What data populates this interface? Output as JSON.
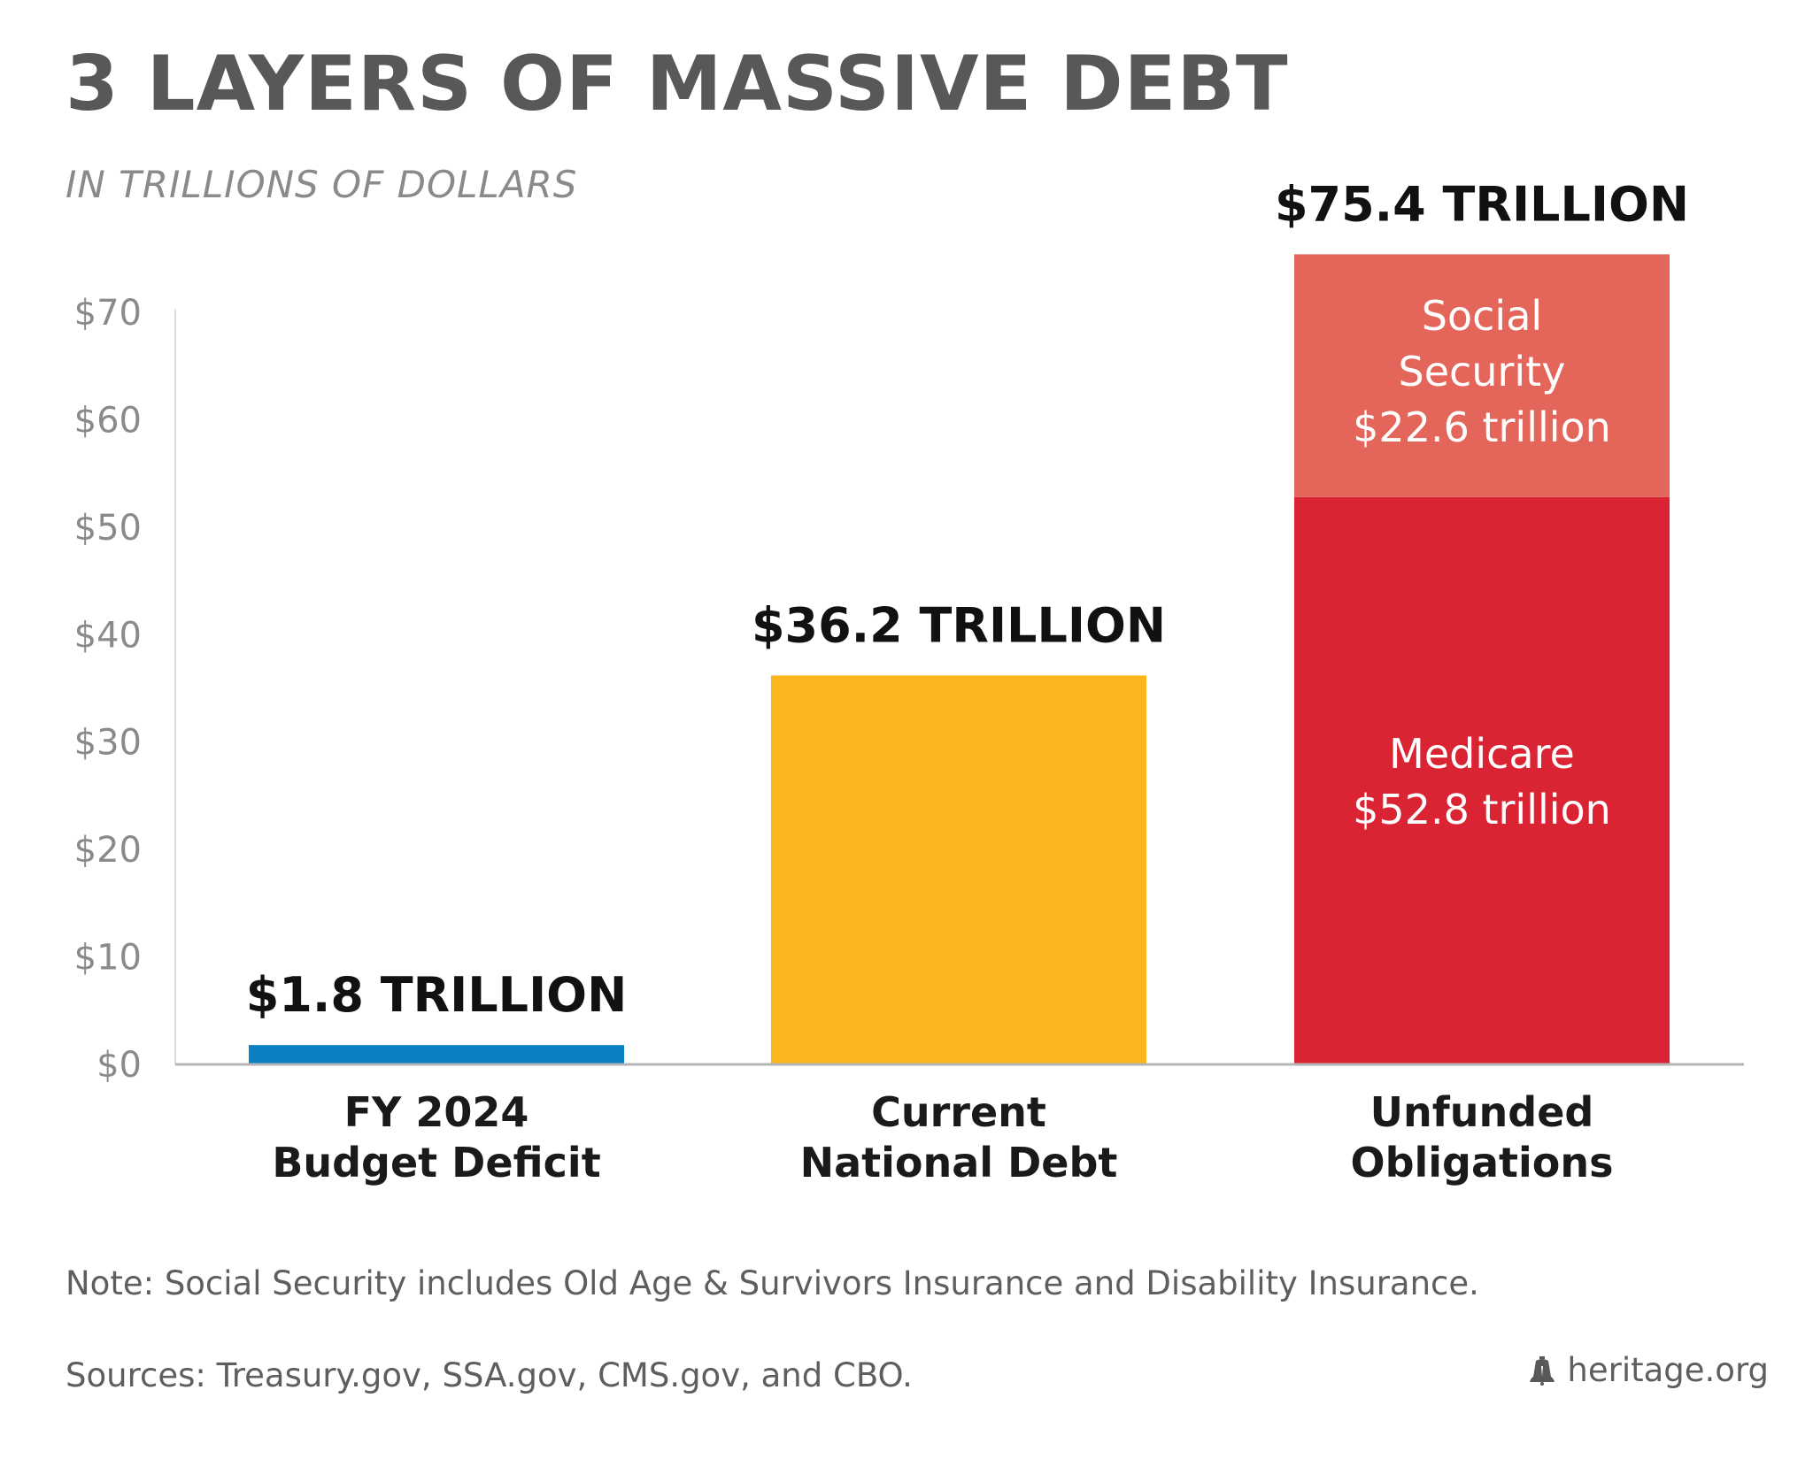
{
  "header": {
    "title": "3 LAYERS OF MASSIVE DEBT",
    "subtitle": "IN TRILLIONS OF DOLLARS"
  },
  "footer": {
    "note": "Note: Social Security includes Old Age & Survivors Insurance and Disability Insurance.",
    "sources": "Sources: Treasury.gov, SSA.gov, CMS.gov, and CBO.",
    "brand_text": "heritage.org",
    "brand_icon": "liberty-bell-icon"
  },
  "colors": {
    "title": "#58585a",
    "subtitle": "#8a8a8c",
    "tick_text": "#8a8a8c",
    "axis": "#b4b4b4",
    "value_label": "#111111",
    "category_label": "#1a1a1a",
    "deficit": "#0a7fc2",
    "national_debt": "#fbb51d",
    "medicare": "#db2433",
    "social_security": "#e46559",
    "segment_text": "#ffffff"
  },
  "chart_data": {
    "type": "bar",
    "stacked": true,
    "title": "3 LAYERS OF MASSIVE DEBT",
    "subtitle": "IN TRILLIONS OF DOLLARS",
    "xlabel": "",
    "ylabel": "",
    "ylim": [
      0,
      70
    ],
    "yticks": [
      0,
      10,
      20,
      30,
      40,
      50,
      60,
      70
    ],
    "ytick_labels": [
      "$0",
      "$10",
      "$20",
      "$30",
      "$40",
      "$50",
      "$60",
      "$70"
    ],
    "grid": false,
    "legend": "none",
    "categories": [
      [
        "FY 2024",
        "Budget Deficit"
      ],
      [
        "Current",
        "National Debt"
      ],
      [
        "Unfunded",
        "Obligations"
      ]
    ],
    "bars": [
      {
        "total": 1.8,
        "total_label": "$1.8 TRILLION",
        "segments": [
          {
            "value": 1.8,
            "color": "#0a7fc2",
            "label_lines": []
          }
        ]
      },
      {
        "total": 36.2,
        "total_label": "$36.2 TRILLION",
        "segments": [
          {
            "value": 36.2,
            "color": "#fbb51d",
            "label_lines": []
          }
        ]
      },
      {
        "total": 75.4,
        "total_label": "$75.4 TRILLION",
        "segments": [
          {
            "name": "Medicare",
            "value": 52.8,
            "color": "#db2433",
            "label_lines": [
              "Medicare",
              "$52.8 trillion"
            ]
          },
          {
            "name": "Social Security",
            "value": 22.6,
            "color": "#e46559",
            "label_lines": [
              "Social",
              "Security",
              "$22.6 trillion"
            ]
          }
        ]
      }
    ]
  }
}
